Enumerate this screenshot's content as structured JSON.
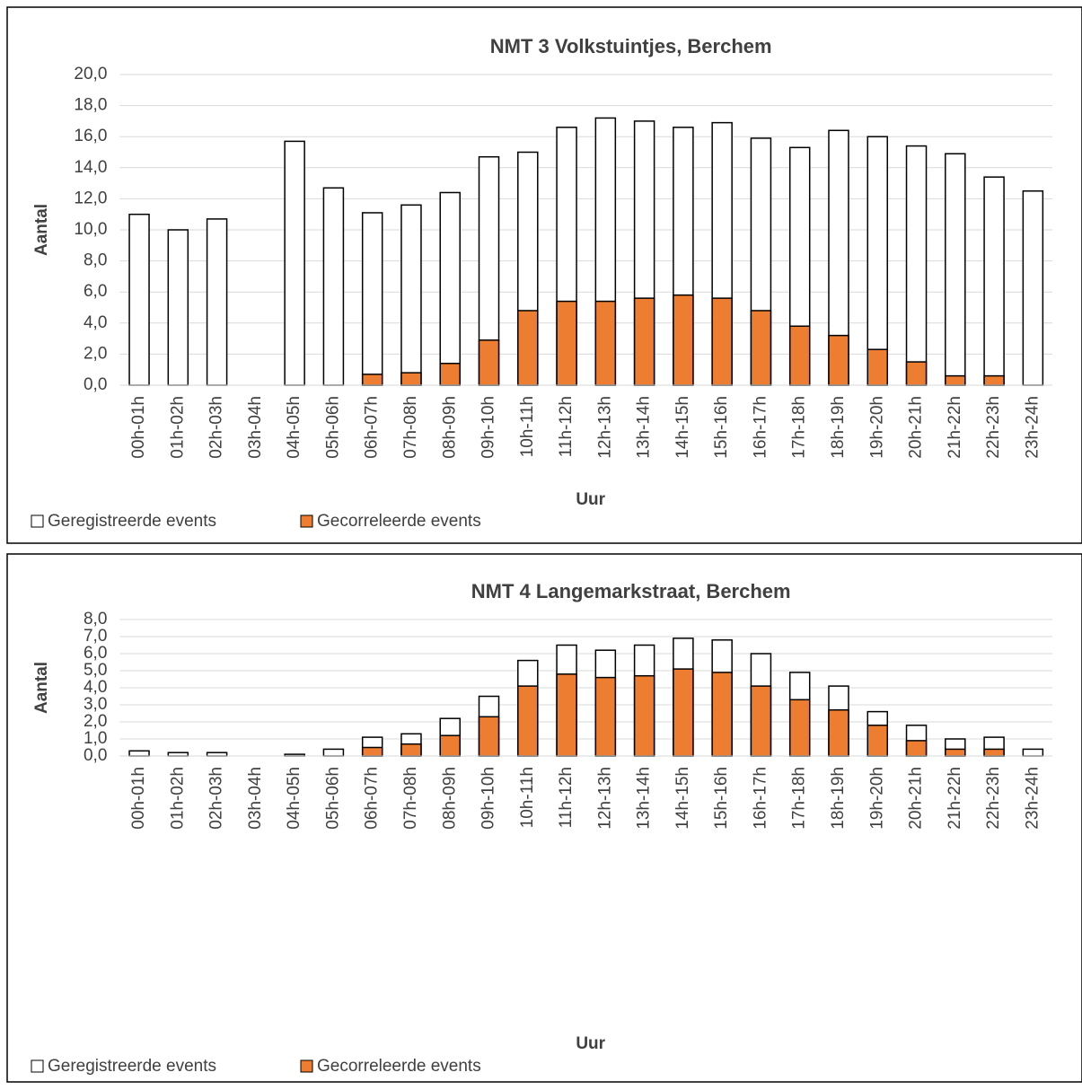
{
  "chart_data": [
    {
      "type": "bar",
      "title": "NMT 3 Volkstuintjes, Berchem",
      "x_label": "Uur",
      "y_label": "Aantal",
      "categories": [
        "00h-01h",
        "01h-02h",
        "02h-03h",
        "03h-04h",
        "04h-05h",
        "05h-06h",
        "06h-07h",
        "07h-08h",
        "08h-09h",
        "09h-10h",
        "10h-11h",
        "11h-12h",
        "12h-13h",
        "13h-14h",
        "14h-15h",
        "15h-16h",
        "16h-17h",
        "17h-18h",
        "18h-19h",
        "19h-20h",
        "20h-21h",
        "21h-22h",
        "22h-23h",
        "23h-24h"
      ],
      "series": [
        {
          "name": "Geregistreerde events",
          "color": "#ffffff",
          "values": [
            11.0,
            10.0,
            10.7,
            null,
            15.7,
            12.7,
            11.1,
            11.6,
            12.4,
            14.7,
            15.0,
            16.6,
            17.2,
            17.0,
            16.6,
            16.9,
            15.9,
            15.3,
            16.4,
            16.0,
            15.4,
            14.9,
            13.4,
            12.5
          ]
        },
        {
          "name": "Gecorreleerde events",
          "color": "#ed7d31",
          "values": [
            0,
            0,
            0,
            null,
            0,
            0,
            0.7,
            0.8,
            1.4,
            2.9,
            4.8,
            5.4,
            5.4,
            5.6,
            5.8,
            5.6,
            4.8,
            3.8,
            3.2,
            2.3,
            1.5,
            0.6,
            0.6,
            0
          ]
        }
      ],
      "ylim": [
        0,
        20
      ],
      "yticks": [
        {
          "value": 0,
          "label": "0,0"
        },
        {
          "value": 2,
          "label": "2,0"
        },
        {
          "value": 4,
          "label": "4,0"
        },
        {
          "value": 6,
          "label": "6,0"
        },
        {
          "value": 8,
          "label": "8,0"
        },
        {
          "value": 10,
          "label": "10,0"
        },
        {
          "value": 12,
          "label": "12,0"
        },
        {
          "value": 14,
          "label": "14,0"
        },
        {
          "value": 16,
          "label": "16,0"
        },
        {
          "value": 18,
          "label": "18,0"
        },
        {
          "value": 20,
          "label": "20,0"
        }
      ],
      "grid": true,
      "legend": "bottom"
    },
    {
      "type": "bar",
      "title": "NMT 4 Langemarkstraat, Berchem",
      "x_label": "Uur",
      "y_label": "Aantal",
      "categories": [
        "00h-01h",
        "01h-02h",
        "02h-03h",
        "03h-04h",
        "04h-05h",
        "05h-06h",
        "06h-07h",
        "07h-08h",
        "08h-09h",
        "09h-10h",
        "10h-11h",
        "11h-12h",
        "12h-13h",
        "13h-14h",
        "14h-15h",
        "15h-16h",
        "16h-17h",
        "17h-18h",
        "18h-19h",
        "19h-20h",
        "20h-21h",
        "21h-22h",
        "22h-23h",
        "23h-24h"
      ],
      "series": [
        {
          "name": "Geregistreerde events",
          "color": "#ffffff",
          "values": [
            0.3,
            0.2,
            0.2,
            null,
            0.1,
            0.4,
            1.1,
            1.3,
            2.2,
            3.5,
            5.6,
            6.5,
            6.2,
            6.5,
            6.9,
            6.8,
            6.0,
            4.9,
            4.1,
            2.6,
            1.8,
            1.0,
            1.1,
            0.4
          ]
        },
        {
          "name": "Gecorreleerde events",
          "color": "#ed7d31",
          "values": [
            0,
            0,
            0,
            null,
            0,
            0,
            0.5,
            0.7,
            1.2,
            2.3,
            4.1,
            4.8,
            4.6,
            4.7,
            5.1,
            4.9,
            4.1,
            3.3,
            2.7,
            1.8,
            0.9,
            0.4,
            0.4,
            0
          ]
        }
      ],
      "ylim": [
        0,
        8
      ],
      "yticks": [
        {
          "value": 0,
          "label": "0,0"
        },
        {
          "value": 1,
          "label": "1,0"
        },
        {
          "value": 2,
          "label": "2,0"
        },
        {
          "value": 3,
          "label": "3,0"
        },
        {
          "value": 4,
          "label": "4,0"
        },
        {
          "value": 5,
          "label": "5,0"
        },
        {
          "value": 6,
          "label": "6,0"
        },
        {
          "value": 7,
          "label": "7,0"
        },
        {
          "value": 8,
          "label": "8,0"
        }
      ],
      "grid": true,
      "legend": "bottom"
    }
  ]
}
